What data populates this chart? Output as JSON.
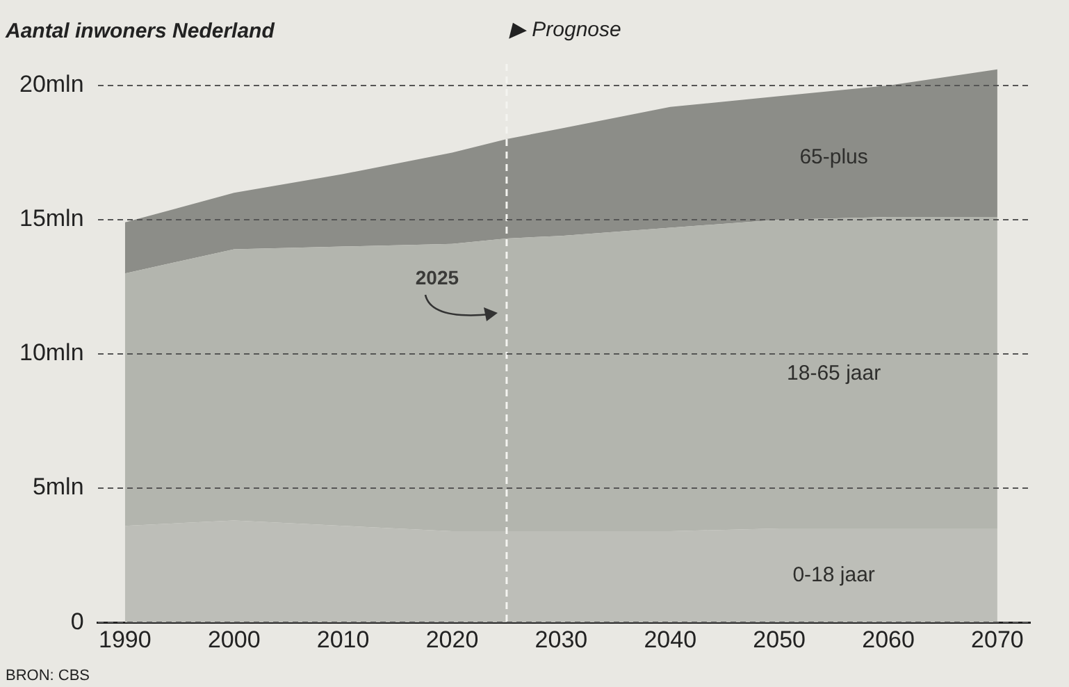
{
  "chart_data": {
    "type": "area",
    "title": "Aantal inwoners Nederland",
    "stacked": true,
    "x": [
      1990,
      2000,
      2010,
      2020,
      2025,
      2030,
      2040,
      2050,
      2060,
      2070
    ],
    "series": [
      {
        "name": "0-18 jaar",
        "color": "#bdbeb8",
        "values": [
          3.6,
          3.8,
          3.6,
          3.4,
          3.4,
          3.4,
          3.4,
          3.5,
          3.5,
          3.5
        ]
      },
      {
        "name": "18-65 jaar",
        "color": "#b3b5ae",
        "values": [
          9.4,
          10.1,
          10.4,
          10.7,
          10.9,
          11.0,
          11.3,
          11.5,
          11.6,
          11.6
        ]
      },
      {
        "name": "65-plus",
        "color": "#8c8d88",
        "values": [
          1.9,
          2.1,
          2.7,
          3.4,
          3.7,
          4.0,
          4.5,
          4.6,
          4.9,
          5.5
        ]
      }
    ],
    "xlim": [
      1987.5,
      2073
    ],
    "xticks": [
      1990,
      2000,
      2010,
      2020,
      2030,
      2040,
      2050,
      2060,
      2070
    ],
    "ylim": [
      0,
      20.8
    ],
    "yticks": [
      0,
      {
        "value": 5,
        "label": "5mln"
      },
      {
        "value": 10,
        "label": "10mln"
      },
      {
        "value": 15,
        "label": "15mln"
      },
      {
        "value": 20,
        "label": "20mln"
      }
    ],
    "grid": "y",
    "legend": false,
    "ref_lines": [
      {
        "axis": "x",
        "value": 2025,
        "label": "2025",
        "color": "#f4f4f0",
        "line_style": "dashed"
      }
    ],
    "annotations": [
      "▶ Prognose",
      "BRON: CBS"
    ]
  }
}
